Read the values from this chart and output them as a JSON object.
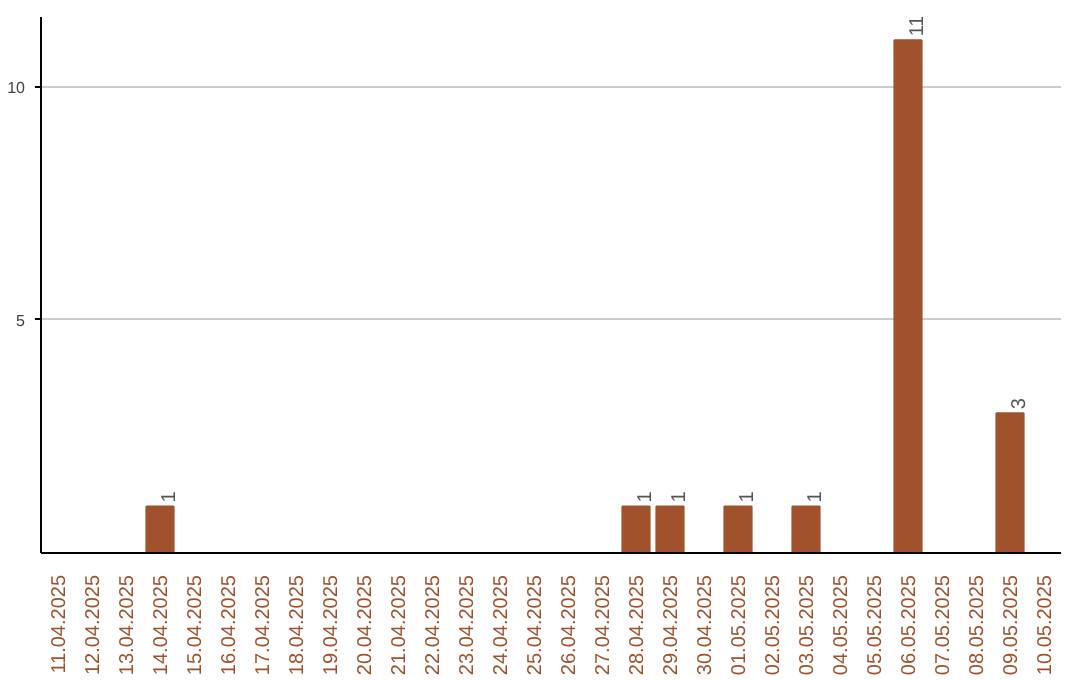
{
  "chart_data": {
    "type": "bar",
    "categories": [
      "11.04.2025",
      "12.04.2025",
      "13.04.2025",
      "14.04.2025",
      "15.04.2025",
      "16.04.2025",
      "17.04.2025",
      "18.04.2025",
      "19.04.2025",
      "20.04.2025",
      "21.04.2025",
      "22.04.2025",
      "23.04.2025",
      "24.04.2025",
      "25.04.2025",
      "26.04.2025",
      "27.04.2025",
      "28.04.2025",
      "29.04.2025",
      "30.04.2025",
      "01.05.2025",
      "02.05.2025",
      "03.05.2025",
      "04.05.2025",
      "05.05.2025",
      "06.05.2025",
      "07.05.2025",
      "08.05.2025",
      "09.05.2025",
      "10.05.2025"
    ],
    "values": [
      0,
      0,
      0,
      1,
      0,
      0,
      0,
      0,
      0,
      0,
      0,
      0,
      0,
      0,
      0,
      0,
      0,
      1,
      1,
      0,
      1,
      0,
      1,
      0,
      0,
      11,
      0,
      0,
      3,
      0
    ],
    "value_labels": [
      null,
      null,
      null,
      "1",
      null,
      null,
      null,
      null,
      null,
      null,
      null,
      null,
      null,
      null,
      null,
      null,
      null,
      "1",
      "1",
      null,
      "1",
      null,
      "1",
      null,
      null,
      "11",
      null,
      null,
      "3",
      null
    ],
    "color": "#a0522d",
    "ylim": [
      0,
      11.5
    ],
    "yticks": [
      5,
      10
    ],
    "grid": "y"
  }
}
